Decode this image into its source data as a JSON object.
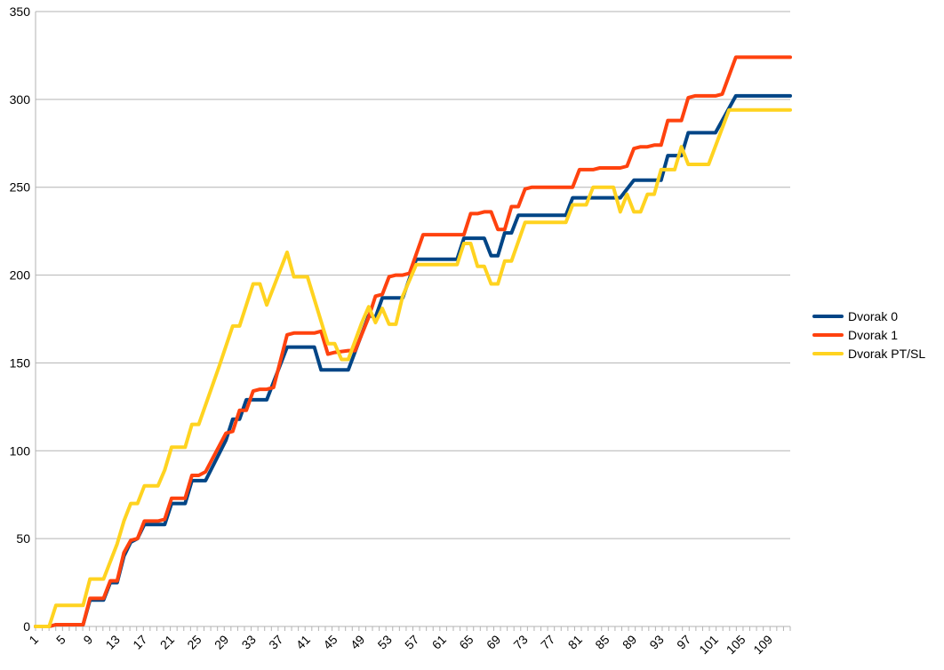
{
  "chart_data": {
    "type": "line",
    "title": "",
    "xlabel": "",
    "ylabel": "",
    "x_range": [
      1,
      112
    ],
    "x_tick_labels": [
      "1",
      "5",
      "9",
      "13",
      "17",
      "21",
      "25",
      "29",
      "33",
      "37",
      "41",
      "45",
      "49",
      "53",
      "57",
      "61",
      "65",
      "69",
      "73",
      "77",
      "81",
      "85",
      "89",
      "93",
      "97",
      "101",
      "105",
      "109"
    ],
    "ylim": [
      0,
      350
    ],
    "y_ticks": [
      0,
      50,
      100,
      150,
      200,
      250,
      300,
      350
    ],
    "grid": "horizontal",
    "legend_position": "right",
    "series": [
      {
        "name": "Dvorak 0",
        "color": "#004586",
        "points": [
          [
            1,
            0
          ],
          [
            3,
            0
          ],
          [
            4,
            1
          ],
          [
            8,
            1
          ],
          [
            9,
            15
          ],
          [
            11,
            15
          ],
          [
            12,
            25
          ],
          [
            13,
            25
          ],
          [
            14,
            40
          ],
          [
            15,
            48
          ],
          [
            16,
            50
          ],
          [
            17,
            58
          ],
          [
            20,
            58
          ],
          [
            21,
            70
          ],
          [
            23,
            70
          ],
          [
            24,
            83
          ],
          [
            26,
            83
          ],
          [
            29,
            106
          ],
          [
            30,
            118
          ],
          [
            31,
            118
          ],
          [
            32,
            129
          ],
          [
            35,
            129
          ],
          [
            38,
            159
          ],
          [
            42,
            159
          ],
          [
            43,
            146
          ],
          [
            47,
            146
          ],
          [
            50,
            177
          ],
          [
            51,
            176
          ],
          [
            52,
            187
          ],
          [
            55,
            187
          ],
          [
            57,
            209
          ],
          [
            63,
            209
          ],
          [
            64,
            221
          ],
          [
            67,
            221
          ],
          [
            68,
            211
          ],
          [
            69,
            211
          ],
          [
            70,
            224
          ],
          [
            71,
            224
          ],
          [
            72,
            234
          ],
          [
            79,
            234
          ],
          [
            80,
            244
          ],
          [
            87,
            244
          ],
          [
            89,
            254
          ],
          [
            93,
            254
          ],
          [
            94,
            268
          ],
          [
            96,
            268
          ],
          [
            97,
            281
          ],
          [
            101,
            281
          ],
          [
            104,
            302
          ],
          [
            112,
            302
          ]
        ]
      },
      {
        "name": "Dvorak 1",
        "color": "#ff420e",
        "points": [
          [
            1,
            0
          ],
          [
            3,
            0
          ],
          [
            4,
            1
          ],
          [
            8,
            1
          ],
          [
            9,
            16
          ],
          [
            11,
            16
          ],
          [
            12,
            26
          ],
          [
            13,
            26
          ],
          [
            14,
            42
          ],
          [
            15,
            49
          ],
          [
            16,
            50
          ],
          [
            17,
            60
          ],
          [
            19,
            60
          ],
          [
            20,
            61
          ],
          [
            21,
            73
          ],
          [
            23,
            73
          ],
          [
            24,
            86
          ],
          [
            25,
            86
          ],
          [
            26,
            88
          ],
          [
            29,
            110
          ],
          [
            30,
            111
          ],
          [
            31,
            123
          ],
          [
            32,
            123
          ],
          [
            33,
            134
          ],
          [
            34,
            135
          ],
          [
            35,
            135
          ],
          [
            36,
            136
          ],
          [
            38,
            166
          ],
          [
            39,
            167
          ],
          [
            42,
            167
          ],
          [
            43,
            168
          ],
          [
            44,
            155
          ],
          [
            45,
            156
          ],
          [
            47,
            157
          ],
          [
            48,
            157
          ],
          [
            50,
            176
          ],
          [
            51,
            188
          ],
          [
            52,
            189
          ],
          [
            53,
            199
          ],
          [
            54,
            200
          ],
          [
            55,
            200
          ],
          [
            56,
            201
          ],
          [
            58,
            223
          ],
          [
            64,
            223
          ],
          [
            65,
            235
          ],
          [
            66,
            235
          ],
          [
            67,
            236
          ],
          [
            68,
            236
          ],
          [
            69,
            226
          ],
          [
            70,
            226
          ],
          [
            71,
            239
          ],
          [
            72,
            239
          ],
          [
            73,
            249
          ],
          [
            74,
            250
          ],
          [
            80,
            250
          ],
          [
            81,
            260
          ],
          [
            83,
            260
          ],
          [
            84,
            261
          ],
          [
            87,
            261
          ],
          [
            88,
            262
          ],
          [
            89,
            272
          ],
          [
            90,
            273
          ],
          [
            91,
            273
          ],
          [
            92,
            274
          ],
          [
            93,
            274
          ],
          [
            94,
            288
          ],
          [
            96,
            288
          ],
          [
            97,
            301
          ],
          [
            98,
            302
          ],
          [
            101,
            302
          ],
          [
            102,
            303
          ],
          [
            104,
            324
          ],
          [
            112,
            324
          ]
        ]
      },
      {
        "name": "Dvorak PT/SL",
        "color": "#ffd320",
        "points": [
          [
            1,
            0
          ],
          [
            3,
            0
          ],
          [
            4,
            12
          ],
          [
            8,
            12
          ],
          [
            9,
            27
          ],
          [
            11,
            27
          ],
          [
            13,
            47
          ],
          [
            14,
            60
          ],
          [
            15,
            70
          ],
          [
            16,
            70
          ],
          [
            17,
            80
          ],
          [
            19,
            80
          ],
          [
            20,
            89
          ],
          [
            21,
            102
          ],
          [
            23,
            102
          ],
          [
            24,
            115
          ],
          [
            25,
            115
          ],
          [
            28,
            148
          ],
          [
            30,
            171
          ],
          [
            31,
            171
          ],
          [
            33,
            195
          ],
          [
            34,
            195
          ],
          [
            35,
            183
          ],
          [
            38,
            213
          ],
          [
            39,
            199
          ],
          [
            41,
            199
          ],
          [
            44,
            161
          ],
          [
            45,
            161
          ],
          [
            46,
            152
          ],
          [
            47,
            152
          ],
          [
            49,
            173
          ],
          [
            50,
            182
          ],
          [
            51,
            173
          ],
          [
            52,
            181
          ],
          [
            53,
            172
          ],
          [
            54,
            172
          ],
          [
            55,
            188
          ],
          [
            57,
            206
          ],
          [
            63,
            206
          ],
          [
            64,
            218
          ],
          [
            65,
            218
          ],
          [
            66,
            205
          ],
          [
            67,
            205
          ],
          [
            68,
            195
          ],
          [
            69,
            195
          ],
          [
            70,
            208
          ],
          [
            71,
            208
          ],
          [
            73,
            230
          ],
          [
            79,
            230
          ],
          [
            80,
            240
          ],
          [
            82,
            240
          ],
          [
            83,
            250
          ],
          [
            86,
            250
          ],
          [
            87,
            236
          ],
          [
            88,
            246
          ],
          [
            89,
            236
          ],
          [
            90,
            236
          ],
          [
            91,
            246
          ],
          [
            92,
            246
          ],
          [
            93,
            260
          ],
          [
            95,
            260
          ],
          [
            96,
            273
          ],
          [
            97,
            263
          ],
          [
            100,
            263
          ],
          [
            103,
            294
          ],
          [
            112,
            294
          ]
        ]
      }
    ]
  }
}
